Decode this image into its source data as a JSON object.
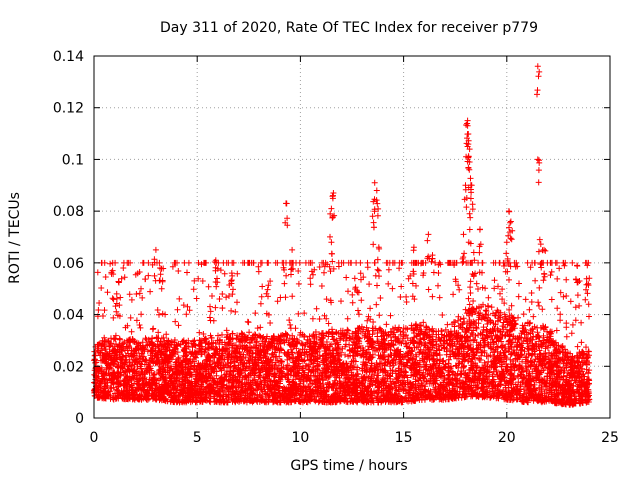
{
  "chart_data": {
    "type": "scatter",
    "title": "Day 311 of 2020, Rate Of TEC Index for receiver p779",
    "xlabel": "GPS time / hours",
    "ylabel": "ROTI / TECUs",
    "xlim": [
      0,
      25
    ],
    "ylim": [
      0,
      0.14
    ],
    "x_ticks": [
      0,
      5,
      10,
      15,
      20,
      25
    ],
    "x_tick_labels": [
      "0",
      "5",
      "10",
      "15",
      "20",
      "25"
    ],
    "y_ticks": [
      0,
      0.02,
      0.04,
      0.06,
      0.08,
      0.1,
      0.12,
      0.14
    ],
    "y_tick_labels": [
      "0",
      "0.02",
      "0.04",
      "0.06",
      "0.08",
      "0.1",
      "0.12",
      "0.14"
    ],
    "grid": true,
    "marker": "+",
    "marker_color": "#ff0000",
    "baseline": {
      "note": "dense band of ROTI samples, approximate envelope per hour",
      "hours": [
        0,
        1,
        2,
        3,
        4,
        5,
        6,
        7,
        8,
        9,
        10,
        11,
        12,
        13,
        14,
        15,
        16,
        17,
        18,
        19,
        20,
        21,
        22,
        23,
        24
      ],
      "low": [
        0.008,
        0.007,
        0.007,
        0.007,
        0.006,
        0.006,
        0.006,
        0.006,
        0.006,
        0.006,
        0.006,
        0.006,
        0.006,
        0.006,
        0.006,
        0.006,
        0.007,
        0.007,
        0.008,
        0.008,
        0.007,
        0.006,
        0.006,
        0.005,
        0.006
      ],
      "high": [
        0.028,
        0.032,
        0.03,
        0.032,
        0.03,
        0.03,
        0.032,
        0.033,
        0.032,
        0.032,
        0.033,
        0.033,
        0.034,
        0.035,
        0.035,
        0.036,
        0.036,
        0.034,
        0.042,
        0.044,
        0.04,
        0.038,
        0.035,
        0.025,
        0.026
      ]
    },
    "peaks": [
      {
        "x": 0.9,
        "y": 0.057
      },
      {
        "x": 1.1,
        "y": 0.048
      },
      {
        "x": 3.0,
        "y": 0.065
      },
      {
        "x": 3.2,
        "y": 0.058
      },
      {
        "x": 5.9,
        "y": 0.061
      },
      {
        "x": 6.7,
        "y": 0.06
      },
      {
        "x": 9.3,
        "y": 0.083
      },
      {
        "x": 9.6,
        "y": 0.065
      },
      {
        "x": 11.6,
        "y": 0.087
      },
      {
        "x": 11.5,
        "y": 0.081
      },
      {
        "x": 11.5,
        "y": 0.068
      },
      {
        "x": 12.7,
        "y": 0.06
      },
      {
        "x": 13.6,
        "y": 0.091
      },
      {
        "x": 13.7,
        "y": 0.088
      },
      {
        "x": 13.5,
        "y": 0.078
      },
      {
        "x": 13.8,
        "y": 0.066
      },
      {
        "x": 15.5,
        "y": 0.066
      },
      {
        "x": 16.2,
        "y": 0.071
      },
      {
        "x": 16.4,
        "y": 0.063
      },
      {
        "x": 18.1,
        "y": 0.115
      },
      {
        "x": 18.1,
        "y": 0.113
      },
      {
        "x": 18.1,
        "y": 0.105
      },
      {
        "x": 18.2,
        "y": 0.104
      },
      {
        "x": 18.2,
        "y": 0.099
      },
      {
        "x": 18.0,
        "y": 0.09
      },
      {
        "x": 18.3,
        "y": 0.09
      },
      {
        "x": 18.2,
        "y": 0.079
      },
      {
        "x": 17.9,
        "y": 0.071
      },
      {
        "x": 18.7,
        "y": 0.073
      },
      {
        "x": 18.4,
        "y": 0.064
      },
      {
        "x": 20.1,
        "y": 0.08
      },
      {
        "x": 20.2,
        "y": 0.076
      },
      {
        "x": 20.0,
        "y": 0.068
      },
      {
        "x": 21.5,
        "y": 0.136
      },
      {
        "x": 21.5,
        "y": 0.1
      },
      {
        "x": 21.6,
        "y": 0.069
      },
      {
        "x": 21.8,
        "y": 0.065
      },
      {
        "x": 23.4,
        "y": 0.059
      },
      {
        "x": 23.9,
        "y": 0.059
      }
    ]
  }
}
